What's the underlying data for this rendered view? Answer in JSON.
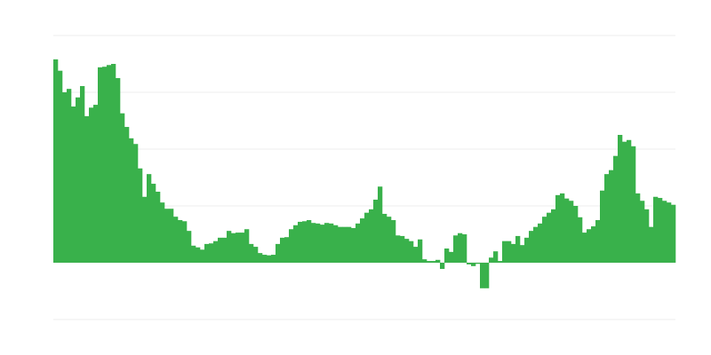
{
  "chart_data": {
    "type": "bar",
    "title": "",
    "xlabel": "",
    "ylabel": "",
    "ylim": [
      -1,
      4
    ],
    "grid": true,
    "legend": "none",
    "colors": {
      "bar": "#39b14b",
      "grid": "#ececec"
    },
    "values": [
      3.58,
      3.38,
      3.0,
      3.06,
      2.75,
      2.91,
      3.11,
      2.58,
      2.73,
      2.78,
      3.44,
      3.45,
      3.48,
      3.5,
      3.25,
      2.63,
      2.39,
      2.19,
      2.09,
      1.66,
      1.16,
      1.56,
      1.39,
      1.25,
      1.06,
      0.95,
      0.95,
      0.81,
      0.75,
      0.73,
      0.56,
      0.3,
      0.27,
      0.23,
      0.33,
      0.34,
      0.38,
      0.44,
      0.44,
      0.56,
      0.52,
      0.53,
      0.53,
      0.59,
      0.33,
      0.28,
      0.17,
      0.14,
      0.13,
      0.14,
      0.33,
      0.44,
      0.45,
      0.59,
      0.66,
      0.72,
      0.73,
      0.75,
      0.7,
      0.69,
      0.67,
      0.7,
      0.69,
      0.66,
      0.63,
      0.63,
      0.63,
      0.61,
      0.69,
      0.78,
      0.88,
      0.94,
      1.11,
      1.34,
      0.86,
      0.81,
      0.75,
      0.48,
      0.47,
      0.42,
      0.38,
      0.28,
      0.41,
      0.06,
      0.03,
      0.03,
      0.05,
      -0.11,
      0.25,
      0.19,
      0.48,
      0.52,
      0.5,
      -0.03,
      -0.06,
      -0.02,
      -0.45,
      -0.45,
      0.09,
      0.2,
      0.03,
      0.38,
      0.38,
      0.33,
      0.47,
      0.31,
      0.44,
      0.56,
      0.63,
      0.69,
      0.81,
      0.88,
      0.94,
      1.19,
      1.22,
      1.13,
      1.09,
      1.0,
      0.8,
      0.53,
      0.59,
      0.64,
      0.75,
      1.27,
      1.56,
      1.63,
      1.88,
      2.25,
      2.13,
      2.16,
      2.05,
      1.22,
      1.09,
      0.94,
      0.63,
      1.16,
      1.14,
      1.09,
      1.06,
      1.02
    ]
  }
}
